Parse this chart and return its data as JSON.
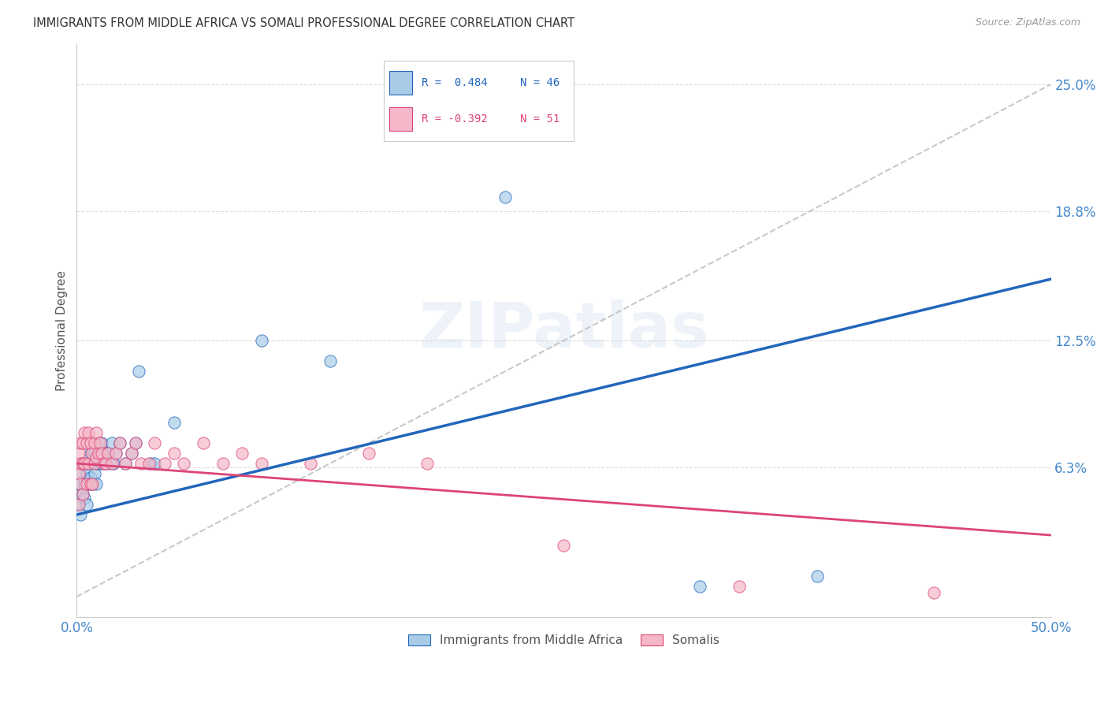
{
  "title": "IMMIGRANTS FROM MIDDLE AFRICA VS SOMALI PROFESSIONAL DEGREE CORRELATION CHART",
  "source": "Source: ZipAtlas.com",
  "ylabel": "Professional Degree",
  "y_tick_values": [
    0.063,
    0.125,
    0.188,
    0.25
  ],
  "y_tick_labels": [
    "6.3%",
    "12.5%",
    "18.8%",
    "25.0%"
  ],
  "x_range": [
    0,
    0.5
  ],
  "y_range": [
    -0.01,
    0.27
  ],
  "legend_blue_r": "R =  0.484",
  "legend_blue_n": "N = 46",
  "legend_pink_r": "R = -0.392",
  "legend_pink_n": "N = 51",
  "legend_blue_label": "Immigrants from Middle Africa",
  "legend_pink_label": "Somalis",
  "blue_color": "#a8cce8",
  "pink_color": "#f5b8c8",
  "trendline_blue": "#2266bb",
  "trendline_pink": "#dd4477",
  "trendline_gray": "#bbbbbb",
  "blue_scatter_x": [
    0.001,
    0.001,
    0.002,
    0.002,
    0.002,
    0.003,
    0.003,
    0.004,
    0.004,
    0.005,
    0.005,
    0.006,
    0.006,
    0.007,
    0.007,
    0.008,
    0.008,
    0.009,
    0.009,
    0.01,
    0.01,
    0.011,
    0.011,
    0.012,
    0.013,
    0.013,
    0.014,
    0.015,
    0.016,
    0.017,
    0.018,
    0.019,
    0.02,
    0.022,
    0.025,
    0.028,
    0.03,
    0.032,
    0.038,
    0.04,
    0.05,
    0.095,
    0.13,
    0.22,
    0.32,
    0.38
  ],
  "blue_scatter_y": [
    0.055,
    0.045,
    0.06,
    0.05,
    0.04,
    0.065,
    0.05,
    0.055,
    0.048,
    0.06,
    0.045,
    0.065,
    0.055,
    0.07,
    0.058,
    0.065,
    0.055,
    0.07,
    0.06,
    0.065,
    0.055,
    0.065,
    0.075,
    0.07,
    0.065,
    0.075,
    0.07,
    0.065,
    0.07,
    0.065,
    0.075,
    0.065,
    0.07,
    0.075,
    0.065,
    0.07,
    0.075,
    0.11,
    0.065,
    0.065,
    0.085,
    0.125,
    0.115,
    0.195,
    0.005,
    0.01
  ],
  "pink_scatter_x": [
    0.001,
    0.001,
    0.001,
    0.002,
    0.002,
    0.002,
    0.003,
    0.003,
    0.003,
    0.004,
    0.004,
    0.005,
    0.005,
    0.006,
    0.006,
    0.007,
    0.007,
    0.008,
    0.008,
    0.009,
    0.009,
    0.01,
    0.01,
    0.011,
    0.012,
    0.013,
    0.014,
    0.015,
    0.016,
    0.018,
    0.02,
    0.022,
    0.025,
    0.028,
    0.03,
    0.033,
    0.037,
    0.04,
    0.045,
    0.05,
    0.055,
    0.065,
    0.075,
    0.085,
    0.095,
    0.12,
    0.15,
    0.18,
    0.25,
    0.34,
    0.44
  ],
  "pink_scatter_y": [
    0.07,
    0.06,
    0.045,
    0.075,
    0.065,
    0.055,
    0.075,
    0.065,
    0.05,
    0.08,
    0.065,
    0.075,
    0.055,
    0.08,
    0.065,
    0.075,
    0.055,
    0.07,
    0.055,
    0.065,
    0.075,
    0.068,
    0.08,
    0.07,
    0.075,
    0.07,
    0.065,
    0.065,
    0.07,
    0.065,
    0.07,
    0.075,
    0.065,
    0.07,
    0.075,
    0.065,
    0.065,
    0.075,
    0.065,
    0.07,
    0.065,
    0.075,
    0.065,
    0.07,
    0.065,
    0.065,
    0.07,
    0.065,
    0.025,
    0.005,
    0.002
  ],
  "watermark": "ZIPatlas",
  "background_color": "#ffffff",
  "grid_color": "#dddddd"
}
